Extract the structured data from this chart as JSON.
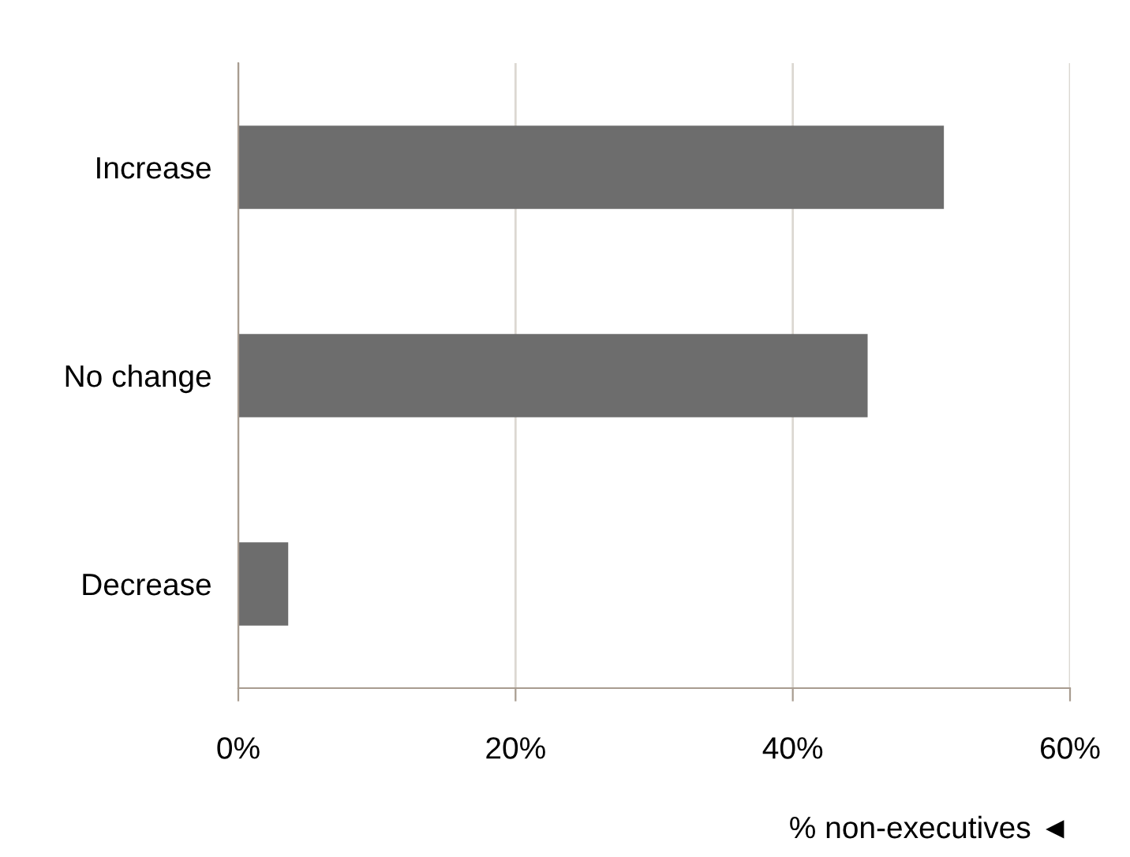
{
  "chart_data": {
    "type": "bar",
    "orientation": "horizontal",
    "categories": [
      "Increase",
      "No change",
      "Decrease"
    ],
    "values": [
      50.9,
      45.4,
      3.6
    ],
    "color": "#6d6d6d",
    "xlim": [
      0,
      60
    ],
    "xticks": [
      {
        "value": 0,
        "label": "0%"
      },
      {
        "value": 20,
        "label": "20%"
      },
      {
        "value": 40,
        "label": "40%"
      },
      {
        "value": 60,
        "label": "60%"
      }
    ],
    "xlabel": "% non-executives ◄",
    "grid": "x",
    "legend": false
  }
}
